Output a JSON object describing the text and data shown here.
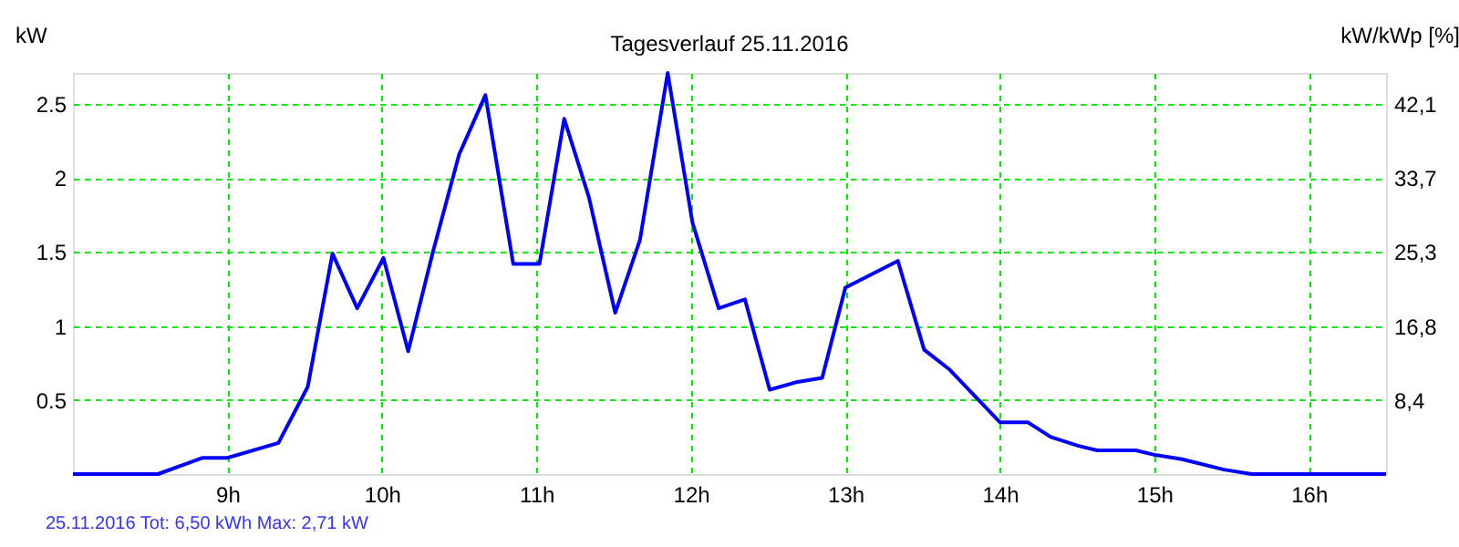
{
  "chart_data": {
    "type": "line",
    "title": "Tagesverlauf 25.11.2016",
    "ylabel": "kW",
    "y2label": "kW/kWp [%]",
    "annotations": [
      "25.11.2016 Tot: 6,50 kWh Max: 2,71 kW"
    ],
    "series": [
      {
        "color": "#0000ff",
        "x": [
          8.0,
          8.55,
          8.84,
          9.0,
          9.33,
          9.52,
          9.68,
          9.84,
          10.01,
          10.17,
          10.33,
          10.5,
          10.67,
          10.85,
          11.02,
          11.18,
          11.34,
          11.51,
          11.67,
          11.85,
          12.01,
          12.18,
          12.35,
          12.51,
          12.68,
          12.85,
          13.0,
          13.34,
          13.51,
          13.67,
          14.0,
          14.18,
          14.33,
          14.51,
          14.63,
          14.88,
          15.0,
          15.18,
          15.45,
          15.63,
          16.5
        ],
        "values": [
          0,
          0,
          0.11,
          0.11,
          0.21,
          0.59,
          1.49,
          1.12,
          1.46,
          0.83,
          1.5,
          2.16,
          2.56,
          1.42,
          1.42,
          2.4,
          1.87,
          1.09,
          1.58,
          2.71,
          1.7,
          1.12,
          1.18,
          0.57,
          0.62,
          0.65,
          1.26,
          1.44,
          0.84,
          0.71,
          0.35,
          0.35,
          0.25,
          0.19,
          0.16,
          0.16,
          0.13,
          0.1,
          0.03,
          0,
          0
        ]
      }
    ],
    "xlim": [
      8,
      16.5
    ],
    "xticks": [
      {
        "value": 9,
        "label": "9h"
      },
      {
        "value": 10,
        "label": "10h"
      },
      {
        "value": 11,
        "label": "11h"
      },
      {
        "value": 12,
        "label": "12h"
      },
      {
        "value": 13,
        "label": "13h"
      },
      {
        "value": 14,
        "label": "14h"
      },
      {
        "value": 15,
        "label": "15h"
      },
      {
        "value": 16,
        "label": "16h"
      }
    ],
    "ylim": [
      0,
      2.71
    ],
    "yticks": [
      0.5,
      1,
      1.5,
      2,
      2.5
    ],
    "y2lim": [
      0,
      45.6
    ],
    "y2ticks": [
      {
        "value": 8.4,
        "label": "8,4"
      },
      {
        "value": 16.8,
        "label": "16,8"
      },
      {
        "value": 25.3,
        "label": "25,3"
      },
      {
        "value": 33.7,
        "label": "33,7"
      },
      {
        "value": 42.1,
        "label": "42,1"
      }
    ],
    "grid": true,
    "line_style": "solid",
    "marker": "none"
  }
}
